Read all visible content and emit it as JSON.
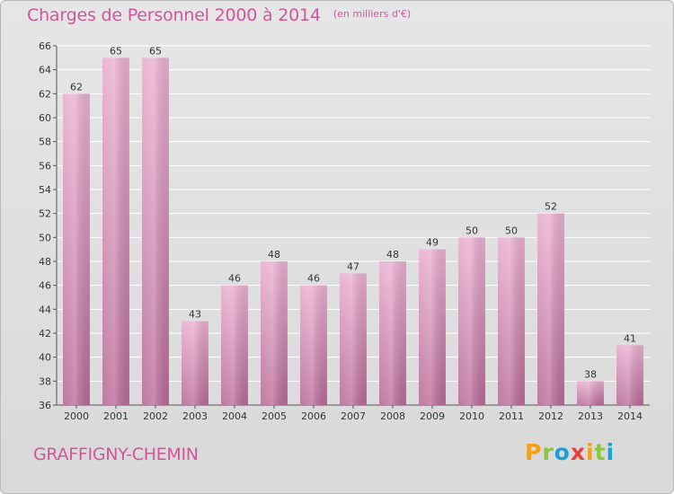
{
  "header": {
    "title": "Charges de Personnel 2000 à 2014",
    "unit": "(en milliers d'€)"
  },
  "footer": {
    "place": "GRAFFIGNY-CHEMIN",
    "logo_text": "Proxiti",
    "logo_letters": [
      {
        "ch": "P",
        "color": "#f5a01a"
      },
      {
        "ch": "r",
        "color": "#8cc63f"
      },
      {
        "ch": "o",
        "color": "#1d9fd8"
      },
      {
        "ch": "x",
        "color": "#e8423f"
      },
      {
        "ch": "i",
        "color": "#f5a01a"
      },
      {
        "ch": "t",
        "color": "#8cc63f"
      },
      {
        "ch": "i",
        "color": "#1d9fd8"
      }
    ]
  },
  "colors": {
    "accent": "#d2569a",
    "bar_top": "#e9afd0",
    "bar_bottom": "#b86a98",
    "grid": "#ffffff",
    "axis_text": "#333333"
  },
  "chart_data": {
    "type": "bar",
    "title": "Charges de Personnel 2000 à 2014",
    "subtitle": "(en milliers d'€)",
    "categories": [
      "2000",
      "2001",
      "2002",
      "2003",
      "2004",
      "2005",
      "2006",
      "2007",
      "2008",
      "2009",
      "2010",
      "2011",
      "2012",
      "2013",
      "2014"
    ],
    "values": [
      62,
      65,
      65,
      43,
      46,
      48,
      46,
      47,
      48,
      49,
      50,
      50,
      52,
      38,
      41
    ],
    "ylim": [
      36,
      66
    ],
    "yticks": [
      36,
      38,
      40,
      42,
      44,
      46,
      48,
      50,
      52,
      54,
      56,
      58,
      60,
      62,
      64,
      66
    ],
    "grid": true,
    "data_labels": true
  }
}
